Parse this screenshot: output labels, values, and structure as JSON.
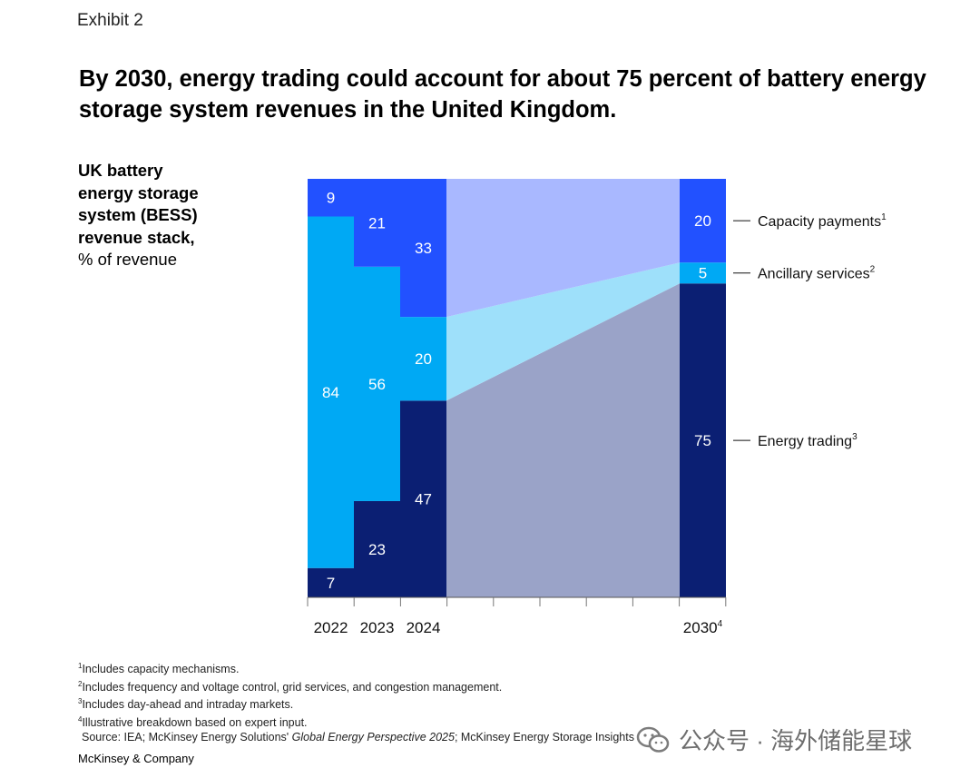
{
  "header": {
    "exhibit": "Exhibit 2",
    "title": "By 2030, energy trading could account for about 75 percent of battery energy storage system revenues in the United Kingdom."
  },
  "chart_data": {
    "type": "bar",
    "subtype": "stacked-100",
    "title": "By 2030, energy trading could account for about 75 percent of battery energy storage system revenues in the United Kingdom.",
    "ylabel_bold": [
      "UK battery",
      "energy storage",
      "system (BESS)",
      "revenue stack,"
    ],
    "ylabel_unit": "% of revenue",
    "categories": [
      "2022",
      "2023",
      "2024",
      "2030"
    ],
    "category_superscripts": [
      "",
      "",
      "",
      "4"
    ],
    "ylim": [
      0,
      100
    ],
    "grid": false,
    "legend_placement": "right",
    "series": [
      {
        "name": "Energy trading",
        "superscript": "3",
        "color": "#0b1f73",
        "bridge_color": "#9aa3c8",
        "values": [
          7,
          23,
          47,
          75
        ]
      },
      {
        "name": "Ancillary services",
        "superscript": "2",
        "color": "#00a9f4",
        "bridge_color": "#9ee0fa",
        "values": [
          84,
          56,
          20,
          5
        ]
      },
      {
        "name": "Capacity payments",
        "superscript": "1",
        "color": "#2251ff",
        "bridge_color": "#a9b8ff",
        "values": [
          9,
          21,
          33,
          20
        ]
      }
    ]
  },
  "footnotes": [
    {
      "sup": "1",
      "text": "Includes capacity mechanisms."
    },
    {
      "sup": "2",
      "text": "Includes frequency and voltage control, grid services, and congestion management."
    },
    {
      "sup": "3",
      "text": "Includes day-ahead and intraday markets."
    },
    {
      "sup": "4",
      "text": "Illustrative breakdown based on expert input."
    }
  ],
  "source": {
    "prefix": "Source: IEA; McKinsey Energy Solutions' ",
    "italic": "Global Energy Perspective 2025",
    "suffix": "; McKinsey Energy Storage Insights"
  },
  "brand": "McKinsey & Company",
  "watermark": {
    "icon": "wechat-icon",
    "text": "公众号 · 海外储能星球"
  }
}
